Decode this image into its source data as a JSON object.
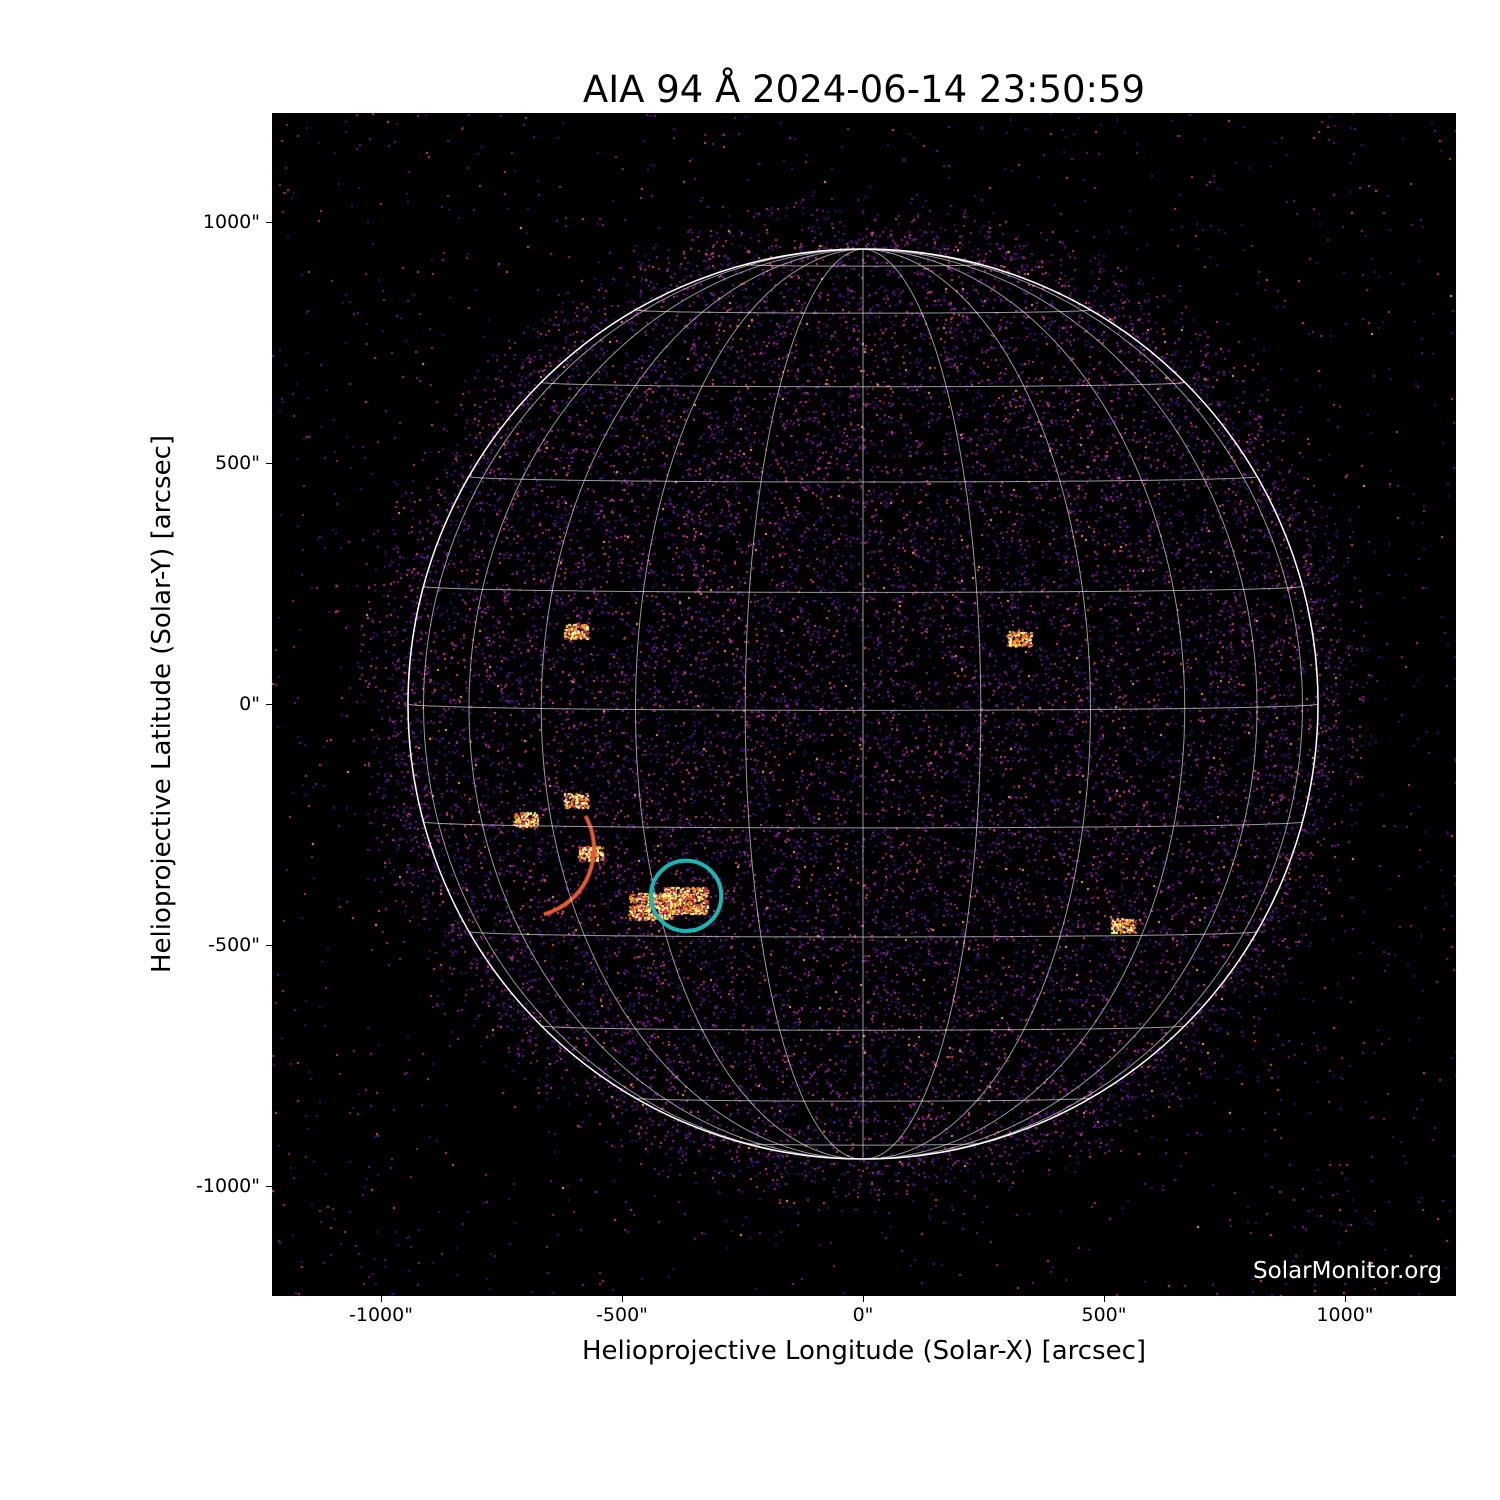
{
  "chart_data": {
    "type": "heatmap",
    "title": "AIA 94 Å 2024-06-14 23:50:59",
    "xlabel": "Helioprojective Longitude (Solar-X) [arcsec]",
    "ylabel": "Helioprojective Latitude (Solar-Y) [arcsec]",
    "xlim": [
      -1228,
      1228
    ],
    "ylim": [
      -1228,
      1228
    ],
    "x_ticks": [
      -1000,
      -500,
      0,
      500,
      1000
    ],
    "y_ticks": [
      1000,
      500,
      0,
      -500,
      -1000
    ],
    "x_tick_labels": [
      "-1000\"",
      "-500\"",
      "0\"",
      "500\"",
      "1000\""
    ],
    "y_tick_labels": [
      "1000\"",
      "500\"",
      "0\"",
      "-500\"",
      "-1000\""
    ],
    "solar_radius_arcsec": 944,
    "grid": {
      "type": "heliographic",
      "spacing_deg": 15,
      "color": "#ffffff"
    },
    "colormap": "inferno-like (black-purple-orange-yellow)",
    "highlight_circle": {
      "x": -367,
      "y": -398,
      "radius": 73,
      "color": "#1ab5b5"
    },
    "bright_regions": [
      {
        "x": -367,
        "y": -408
      },
      {
        "x": -440,
        "y": -420
      },
      {
        "x": -565,
        "y": -310
      },
      {
        "x": -595,
        "y": 150
      },
      {
        "x": 325,
        "y": 135
      },
      {
        "x": -595,
        "y": -200
      },
      {
        "x": -700,
        "y": -240
      },
      {
        "x": 540,
        "y": -460
      }
    ]
  },
  "watermark": "SolarMonitor.org"
}
